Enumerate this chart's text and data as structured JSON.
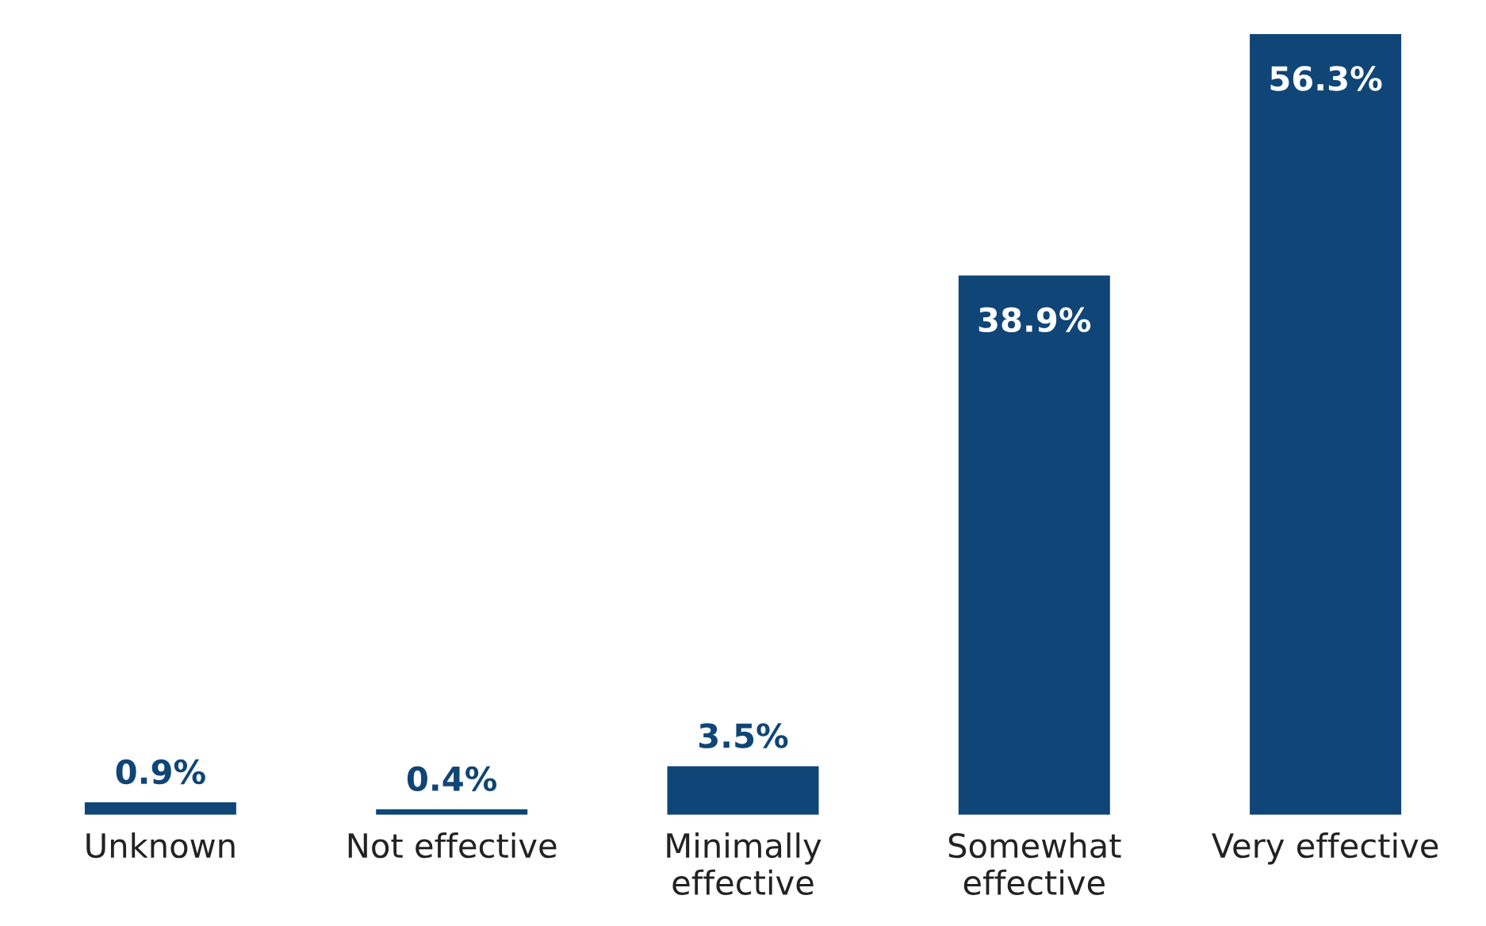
{
  "chart_data": {
    "type": "bar",
    "categories": [
      "Unknown",
      "Not effective",
      "Minimally\neffective",
      "Somewhat\neffective",
      "Very effective"
    ],
    "values": [
      0.9,
      0.4,
      3.5,
      38.9,
      56.3
    ],
    "value_labels": [
      "0.9%",
      "0.4%",
      "3.5%",
      "38.9%",
      "56.3%"
    ],
    "color": "#0f4577",
    "grid": false,
    "legend": false
  }
}
